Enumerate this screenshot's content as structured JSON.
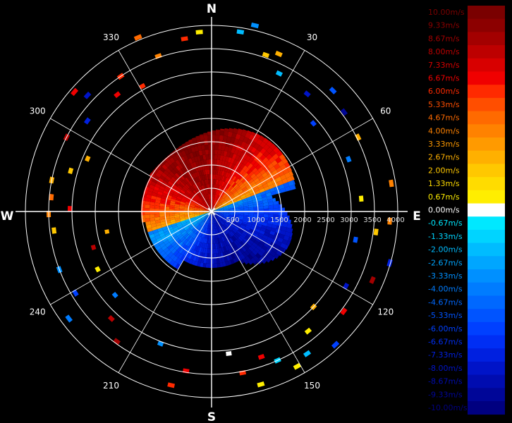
{
  "compass": {
    "north": "N",
    "south": "S",
    "east": "E",
    "west": "W"
  },
  "bearings": [
    {
      "deg": 30,
      "label": "30"
    },
    {
      "deg": 60,
      "label": "60"
    },
    {
      "deg": 120,
      "label": "120"
    },
    {
      "deg": 150,
      "label": "150"
    },
    {
      "deg": 210,
      "label": "210"
    },
    {
      "deg": 240,
      "label": "240"
    },
    {
      "deg": 300,
      "label": "300"
    },
    {
      "deg": 330,
      "label": "330"
    }
  ],
  "range_labels": [
    "500",
    "1000",
    "1500",
    "2000",
    "2500",
    "3000",
    "3500",
    "4000"
  ],
  "legend": [
    {
      "label": "10.00m/s",
      "color": "#7a0000"
    },
    {
      "label": "9.33m/s",
      "color": "#8c0000"
    },
    {
      "label": "8.67m/s",
      "color": "#a30000"
    },
    {
      "label": "8.00m/s",
      "color": "#bd0000"
    },
    {
      "label": "7.33m/s",
      "color": "#d80000"
    },
    {
      "label": "6.67m/s",
      "color": "#f00000"
    },
    {
      "label": "6.00m/s",
      "color": "#ff2a00"
    },
    {
      "label": "5.33m/s",
      "color": "#ff4e00"
    },
    {
      "label": "4.67m/s",
      "color": "#ff6a00"
    },
    {
      "label": "4.00m/s",
      "color": "#ff8200"
    },
    {
      "label": "3.33m/s",
      "color": "#ff9a00"
    },
    {
      "label": "2.67m/s",
      "color": "#ffb000"
    },
    {
      "label": "2.00m/s",
      "color": "#ffc800"
    },
    {
      "label": "1.33m/s",
      "color": "#ffdc00"
    },
    {
      "label": "0.67m/s",
      "color": "#ffee00"
    },
    {
      "label": "0.00m/s",
      "color": "#ffffff"
    },
    {
      "label": "-0.67m/s",
      "color": "#00e8ff"
    },
    {
      "label": "-1.33m/s",
      "color": "#00d4ff"
    },
    {
      "label": "-2.00m/s",
      "color": "#00bcff"
    },
    {
      "label": "-2.67m/s",
      "color": "#00a6ff"
    },
    {
      "label": "-3.33m/s",
      "color": "#0090ff"
    },
    {
      "label": "-4.00m/s",
      "color": "#007cff"
    },
    {
      "label": "-4.67m/s",
      "color": "#0068ff"
    },
    {
      "label": "-5.33m/s",
      "color": "#0054ff"
    },
    {
      "label": "-6.00m/s",
      "color": "#0040ff"
    },
    {
      "label": "-6.67m/s",
      "color": "#002ef4"
    },
    {
      "label": "-7.33m/s",
      "color": "#0020e0"
    },
    {
      "label": "-8.00m/s",
      "color": "#0014c8"
    },
    {
      "label": "-8.67m/s",
      "color": "#000cb0"
    },
    {
      "label": "-9.33m/s",
      "color": "#000698"
    },
    {
      "label": "-10.00m/s",
      "color": "#000080"
    }
  ],
  "colors": {
    "background": "#000000",
    "grid": "#ffffff"
  }
}
